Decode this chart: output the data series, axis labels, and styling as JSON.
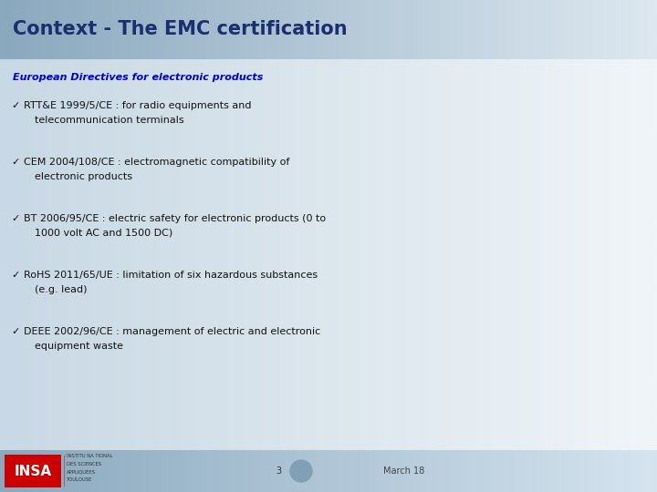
{
  "title": "Context - The EMC certification",
  "subtitle": "European Directives for electronic products",
  "bullet_items": [
    [
      "RTT&E 1999/5/CE : for radio equipments and",
      "telecommunication terminals"
    ],
    [
      "CEM 2004/108/CE : electromagnetic compatibility of",
      "electronic products"
    ],
    [
      "BT 2006/95/CE : electric safety for electronic products (0 to",
      "1000 volt AC and 1500 DC)"
    ],
    [
      "RoHS 2011/65/UE : limitation of six hazardous substances",
      "(e.g. lead)"
    ],
    [
      "DEEE 2002/96/CE : management of electric and electronic",
      "equipment waste"
    ]
  ],
  "title_color": "#1a2f6e",
  "title_bg_left": "#8aa8be",
  "title_bg_right": "#dde8f0",
  "subtitle_color": "#0000cc",
  "bullet_color": "#111111",
  "check_color": "#111111",
  "body_bg_left": "#c8d8e4",
  "body_bg_right": "#f0f5f8",
  "footer_bg_left": "#8aa8be",
  "footer_bg_right": "#d5e4ef",
  "footer_page_num": "3",
  "footer_date": "March 18",
  "footer_circle_color": "#7fa0b5",
  "insa_red": "#cc0000",
  "title_fontsize": 15,
  "subtitle_fontsize": 8,
  "bullet_fontsize": 8,
  "footer_fontsize": 7
}
